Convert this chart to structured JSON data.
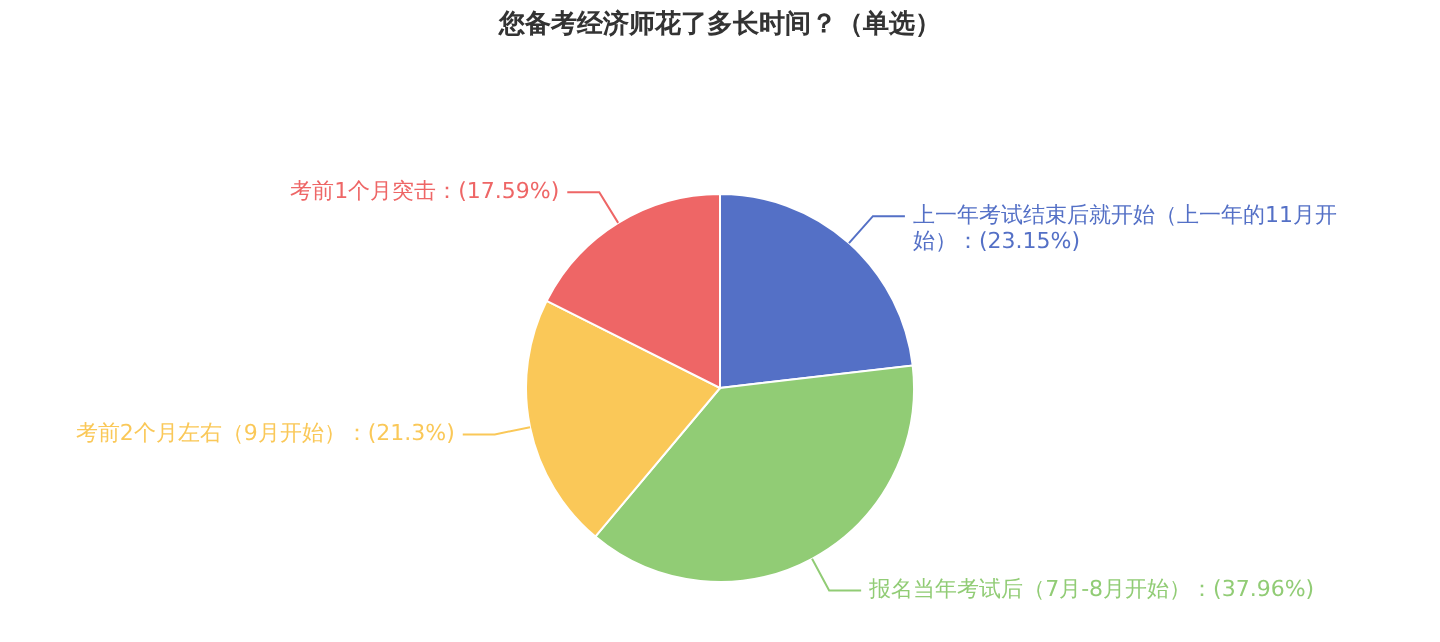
{
  "chart_data": {
    "type": "pie",
    "title": "您备考经济师花了多长时间？（单选）",
    "categories": [
      "上一年考试结束后就开始（上一年的11月开始）",
      "报名当年考试后（7月-8月开始）",
      "考前2个月左右（9月开始）",
      "考前1个月突击"
    ],
    "values": [
      23.15,
      37.96,
      21.3,
      17.59
    ],
    "value_labels": [
      "(23.15%)",
      "(37.96%)",
      "(21.3%)",
      "(17.59%)"
    ],
    "colors": [
      "#5470c6",
      "#91cc75",
      "#fac858",
      "#ee6666"
    ]
  }
}
